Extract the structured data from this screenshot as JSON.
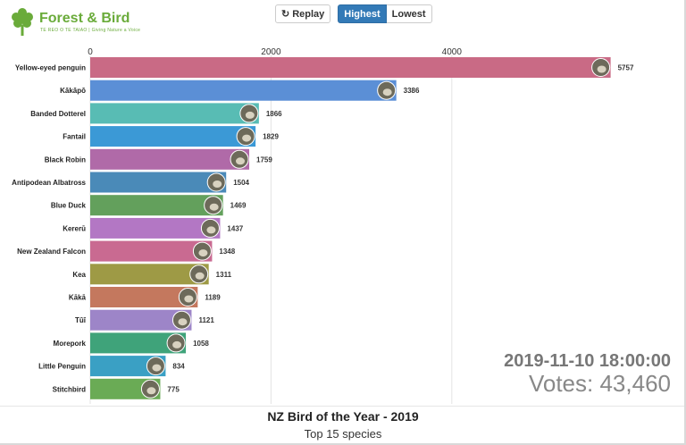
{
  "brand": {
    "name": "Forest & Bird",
    "tagline": "TE REO O TE TAIAO | Giving Nature a Voice",
    "color": "#6aab3a"
  },
  "controls": {
    "replay_label": "Replay",
    "replay_icon": "replay-icon",
    "highest_label": "Highest",
    "lowest_label": "Lowest",
    "active_color": "#337ab7"
  },
  "readout": {
    "date": "2019-11-10 18:00:00",
    "votes_label": "Votes:",
    "votes_value": "43,460"
  },
  "chart_data": {
    "type": "bar",
    "orientation": "horizontal",
    "title": "NZ Bird of the Year - 2019",
    "subtitle": "Top 15 species",
    "xlim": [
      0,
      6000
    ],
    "x_ticks": [
      0,
      2000,
      4000
    ],
    "x_tick_labels": [
      "0",
      "2000",
      "4000"
    ],
    "axis_position": "top",
    "grid": true,
    "categories": [
      "Yellow-eyed penguin",
      "Kākāpō",
      "Banded Dotterel",
      "Fantail",
      "Black Robin",
      "Antipodean Albatross",
      "Blue Duck",
      "Kererū",
      "New Zealand Falcon",
      "Kea",
      "Kākā",
      "Tūī",
      "Morepork",
      "Little Penguin",
      "Stitchbird"
    ],
    "values": [
      5757,
      3386,
      1866,
      1829,
      1759,
      1504,
      1469,
      1437,
      1348,
      1311,
      1189,
      1121,
      1058,
      834,
      775
    ],
    "colors": [
      "#c96a85",
      "#5b8fd6",
      "#58bcb4",
      "#3b99d6",
      "#b06aa8",
      "#4a8ab8",
      "#63a05c",
      "#b377c4",
      "#c96a91",
      "#9e9a45",
      "#c4785e",
      "#9d85c8",
      "#3fa37a",
      "#3aa0c4",
      "#6aab55"
    ],
    "icons": [
      "penguin-photo-icon",
      "kakapo-photo-icon",
      "dotterel-photo-icon",
      "fantail-photo-icon",
      "robin-photo-icon",
      "albatross-photo-icon",
      "duck-photo-icon",
      "kereru-photo-icon",
      "falcon-photo-icon",
      "kea-photo-icon",
      "kaka-photo-icon",
      "tui-photo-icon",
      "morepork-photo-icon",
      "little-penguin-photo-icon",
      "stitchbird-photo-icon"
    ]
  }
}
